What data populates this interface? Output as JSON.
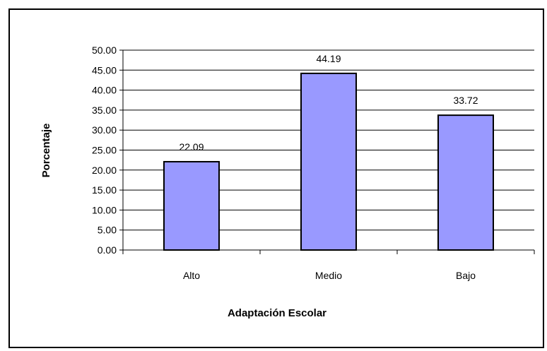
{
  "chart_data": {
    "type": "bar",
    "categories": [
      "Alto",
      "Medio",
      "Bajo"
    ],
    "values": [
      22.09,
      44.19,
      33.72
    ],
    "value_labels": [
      "22.09",
      "44.19",
      "33.72"
    ],
    "xlabel": "Adaptación Escolar",
    "ylabel": "Porcentaje",
    "ylim": [
      0,
      50
    ],
    "ytick_labels": [
      "0.00",
      "5.00",
      "10.00",
      "15.00",
      "20.00",
      "25.00",
      "30.00",
      "35.00",
      "40.00",
      "45.00",
      "50.00"
    ],
    "grid": true,
    "legend": "none",
    "bar_color": "#9999ff",
    "bar_edge_color": "#000000"
  }
}
